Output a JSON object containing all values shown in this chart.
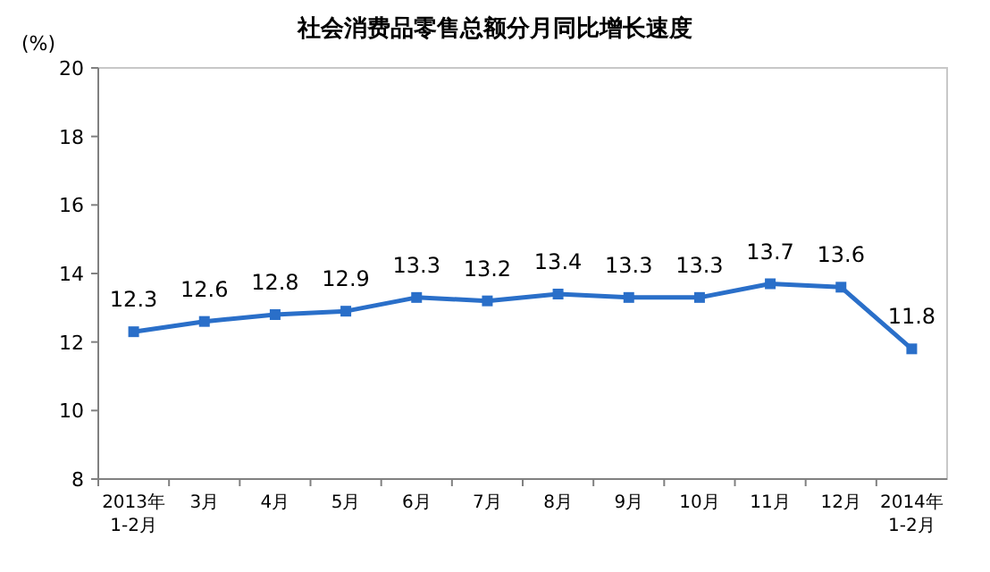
{
  "chart_data": {
    "type": "line",
    "title": "社会消费品零售总额分月同比增长速度",
    "ylabel": "(%)",
    "categories": [
      "2013年\n1-2月",
      "3月",
      "4月",
      "5月",
      "6月",
      "7月",
      "8月",
      "9月",
      "10月",
      "11月",
      "12月",
      "2014年\n1-2月"
    ],
    "values": [
      12.3,
      12.6,
      12.8,
      12.9,
      13.3,
      13.2,
      13.4,
      13.3,
      13.3,
      13.7,
      13.6,
      11.8
    ],
    "color": "#2a6fc9",
    "marker": "square",
    "data_labels": true,
    "grid": false,
    "ylim": [
      8,
      20
    ],
    "yticks": [
      8,
      10,
      12,
      14,
      16,
      18,
      20
    ]
  }
}
